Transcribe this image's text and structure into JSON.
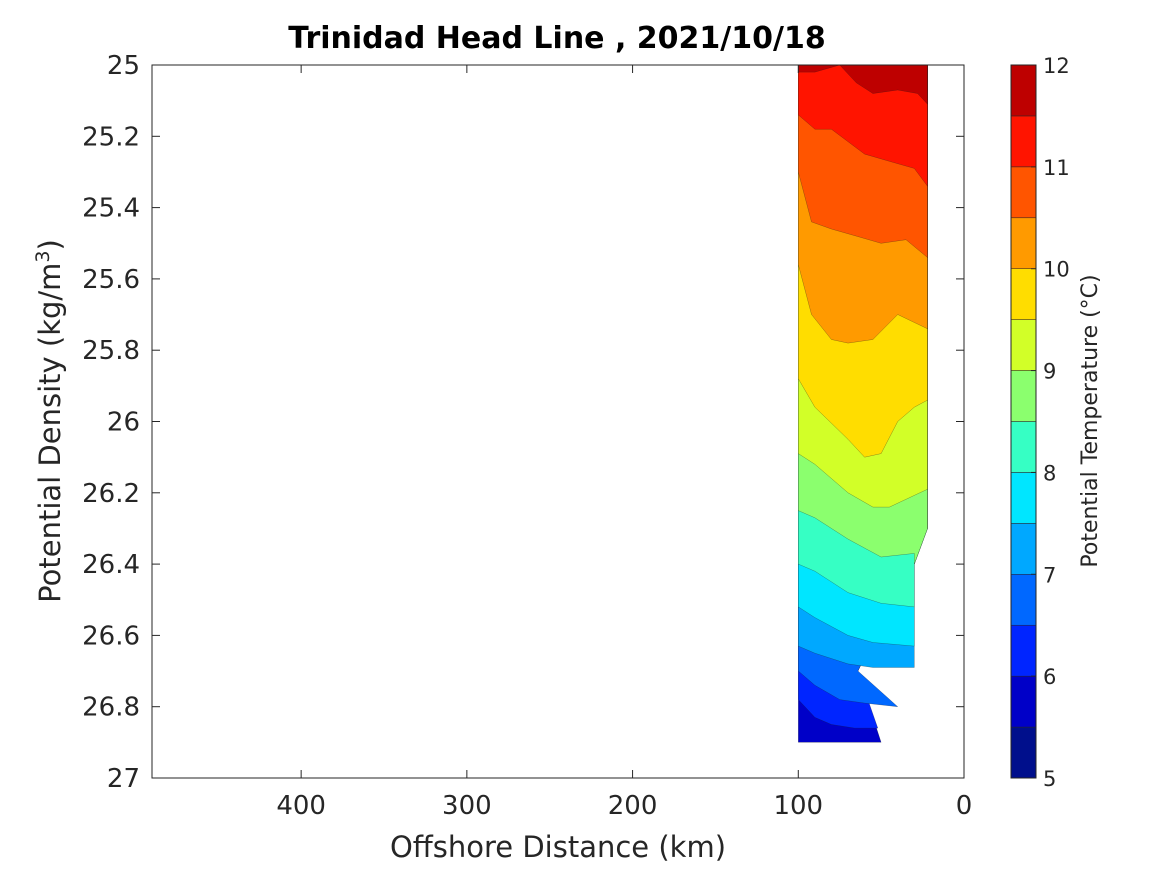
{
  "chart_data": {
    "type": "contour",
    "title": "Trinidad Head Line , 2021/10/18",
    "xlabel": "Offshore Distance (km)",
    "ylabel_main": "Potential Density (kg/m",
    "ylabel_sup": "3",
    "ylabel_close": ")",
    "colorbar_label": "Potential Temperature (°C)",
    "x_axis": {
      "range": [
        490,
        0
      ],
      "reversed": true,
      "ticks": [
        400,
        300,
        200,
        100,
        0
      ],
      "tick_labels": [
        "400",
        "300",
        "200",
        "100",
        "0"
      ]
    },
    "y_axis": {
      "range": [
        25,
        27
      ],
      "reversed": true,
      "ticks": [
        25,
        25.2,
        25.4,
        25.6,
        25.8,
        26,
        26.2,
        26.4,
        26.6,
        26.8,
        27
      ],
      "tick_labels": [
        "25",
        "25.2",
        "25.4",
        "25.6",
        "25.8",
        "26",
        "26.2",
        "26.4",
        "26.6",
        "26.8",
        "27"
      ]
    },
    "colorbar": {
      "range": [
        5,
        12
      ],
      "ticks": [
        5,
        6,
        7,
        8,
        9,
        10,
        11,
        12
      ],
      "tick_labels": [
        "5",
        "6",
        "7",
        "8",
        "9",
        "10",
        "11",
        "12"
      ],
      "bands": [
        {
          "lo": 5.0,
          "hi": 5.5,
          "color": "#000f8c"
        },
        {
          "lo": 5.5,
          "hi": 6.0,
          "color": "#0000c8"
        },
        {
          "lo": 6.0,
          "hi": 6.5,
          "color": "#0025ff"
        },
        {
          "lo": 6.5,
          "hi": 7.0,
          "color": "#0068ff"
        },
        {
          "lo": 7.0,
          "hi": 7.5,
          "color": "#00a8ff"
        },
        {
          "lo": 7.5,
          "hi": 8.0,
          "color": "#00e6ff"
        },
        {
          "lo": 8.0,
          "hi": 8.5,
          "color": "#36ffc4"
        },
        {
          "lo": 8.5,
          "hi": 9.0,
          "color": "#8bff6e"
        },
        {
          "lo": 9.0,
          "hi": 9.5,
          "color": "#d2ff28"
        },
        {
          "lo": 9.5,
          "hi": 10.0,
          "color": "#ffdd00"
        },
        {
          "lo": 10.0,
          "hi": 10.5,
          "color": "#ff9a00"
        },
        {
          "lo": 10.5,
          "hi": 11.0,
          "color": "#ff5500"
        },
        {
          "lo": 11.0,
          "hi": 11.5,
          "color": "#ff1400"
        },
        {
          "lo": 11.5,
          "hi": 12.0,
          "color": "#be0000"
        }
      ]
    },
    "contour_regions": [
      {
        "level": 5.5,
        "color": "#0000c8",
        "outline": [
          [
            100,
            26.9
          ],
          [
            50,
            26.9
          ],
          [
            64,
            26.7
          ],
          [
            22,
            26.3
          ],
          [
            22,
            25.0
          ],
          [
            100,
            25.0
          ]
        ]
      },
      {
        "level": 6.0,
        "color": "#0025ff",
        "outline": [
          [
            100,
            26.78
          ],
          [
            90,
            26.83
          ],
          [
            80,
            26.85
          ],
          [
            66,
            26.86
          ],
          [
            52,
            26.86
          ],
          [
            64,
            26.7
          ],
          [
            22,
            26.3
          ],
          [
            22,
            25.0
          ],
          [
            100,
            25.0
          ]
        ]
      },
      {
        "level": 6.5,
        "color": "#0068ff",
        "outline": [
          [
            100,
            26.7
          ],
          [
            90,
            26.74
          ],
          [
            75,
            26.78
          ],
          [
            60,
            26.79
          ],
          [
            40,
            26.8
          ],
          [
            64,
            26.7
          ],
          [
            22,
            26.3
          ],
          [
            22,
            25.0
          ],
          [
            100,
            25.0
          ]
        ]
      },
      {
        "level": 7.0,
        "color": "#00a8ff",
        "outline": [
          [
            100,
            26.63
          ],
          [
            90,
            26.65
          ],
          [
            70,
            26.68
          ],
          [
            55,
            26.69
          ],
          [
            30,
            26.69
          ],
          [
            30,
            26.4
          ],
          [
            22,
            26.3
          ],
          [
            22,
            25.0
          ],
          [
            100,
            25.0
          ]
        ]
      },
      {
        "level": 7.5,
        "color": "#00e6ff",
        "outline": [
          [
            100,
            26.52
          ],
          [
            90,
            26.55
          ],
          [
            70,
            26.6
          ],
          [
            55,
            26.62
          ],
          [
            30,
            26.63
          ],
          [
            30,
            26.4
          ],
          [
            22,
            26.3
          ],
          [
            22,
            25.0
          ],
          [
            100,
            25.0
          ]
        ]
      },
      {
        "level": 8.0,
        "color": "#36ffc4",
        "outline": [
          [
            100,
            26.4
          ],
          [
            90,
            26.42
          ],
          [
            70,
            26.48
          ],
          [
            50,
            26.51
          ],
          [
            30,
            26.52
          ],
          [
            30,
            26.4
          ],
          [
            22,
            26.3
          ],
          [
            22,
            25.0
          ],
          [
            100,
            25.0
          ]
        ]
      },
      {
        "level": 8.5,
        "color": "#8bff6e",
        "outline": [
          [
            100,
            26.25
          ],
          [
            90,
            26.27
          ],
          [
            70,
            26.33
          ],
          [
            50,
            26.38
          ],
          [
            30,
            26.37
          ],
          [
            30,
            26.4
          ],
          [
            22,
            26.3
          ],
          [
            22,
            25.0
          ],
          [
            100,
            25.0
          ]
        ]
      },
      {
        "level": 9.0,
        "color": "#d2ff28",
        "outline": [
          [
            100,
            26.09
          ],
          [
            90,
            26.12
          ],
          [
            70,
            26.2
          ],
          [
            55,
            26.24
          ],
          [
            45,
            26.24
          ],
          [
            22,
            26.19
          ],
          [
            22,
            25.0
          ],
          [
            100,
            25.0
          ]
        ]
      },
      {
        "level": 9.5,
        "color": "#ffdd00",
        "outline": [
          [
            100,
            25.88
          ],
          [
            90,
            25.96
          ],
          [
            70,
            26.05
          ],
          [
            60,
            26.1
          ],
          [
            50,
            26.09
          ],
          [
            40,
            26.0
          ],
          [
            30,
            25.96
          ],
          [
            22,
            25.94
          ],
          [
            22,
            25.0
          ],
          [
            100,
            25.0
          ]
        ]
      },
      {
        "level": 10.0,
        "color": "#ff9a00",
        "outline": [
          [
            100,
            25.56
          ],
          [
            92,
            25.7
          ],
          [
            80,
            25.77
          ],
          [
            70,
            25.78
          ],
          [
            55,
            25.77
          ],
          [
            40,
            25.7
          ],
          [
            22,
            25.74
          ],
          [
            22,
            25.0
          ],
          [
            100,
            25.0
          ]
        ]
      },
      {
        "level": 10.5,
        "color": "#ff5500",
        "outline": [
          [
            100,
            25.3
          ],
          [
            92,
            25.44
          ],
          [
            80,
            25.46
          ],
          [
            65,
            25.48
          ],
          [
            50,
            25.5
          ],
          [
            35,
            25.49
          ],
          [
            22,
            25.54
          ],
          [
            22,
            25.0
          ],
          [
            100,
            25.0
          ]
        ]
      },
      {
        "level": 11.0,
        "color": "#ff1400",
        "outline": [
          [
            100,
            25.14
          ],
          [
            90,
            25.18
          ],
          [
            80,
            25.18
          ],
          [
            60,
            25.25
          ],
          [
            45,
            25.27
          ],
          [
            30,
            25.29
          ],
          [
            22,
            25.34
          ],
          [
            22,
            25.0
          ],
          [
            100,
            25.0
          ]
        ]
      },
      {
        "level": 11.5,
        "color": "#be0000",
        "outline": [
          [
            100,
            25.02
          ],
          [
            90,
            25.02
          ],
          [
            75,
            25.0
          ],
          [
            65,
            25.05
          ],
          [
            55,
            25.08
          ],
          [
            40,
            25.07
          ],
          [
            28,
            25.08
          ],
          [
            22,
            25.11
          ],
          [
            22,
            25.0
          ],
          [
            100,
            25.0
          ]
        ]
      }
    ]
  }
}
